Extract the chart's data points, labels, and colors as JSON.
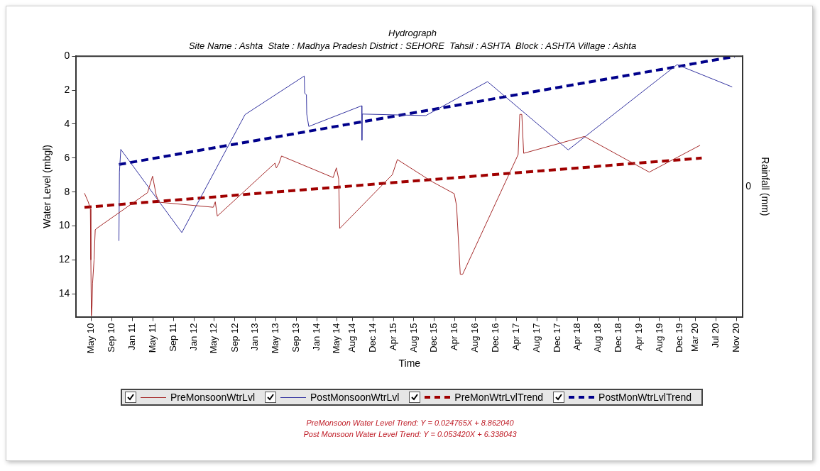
{
  "chart_data": {
    "type": "line",
    "title": "Hydrograph",
    "subtitle": "Site Name : Ashta  State : Madhya Pradesh District : SEHORE  Tahsil : ASHTA  Block : ASHTA Village : Ashta",
    "xlabel": "Time",
    "ylabel": "Water Level (mbgl)",
    "y2label": "Rainfall (mm)",
    "xlim": [
      "2010-01-31",
      "2020-12-08"
    ],
    "xticks": [
      {
        "value": "2010-05",
        "label": "May 10"
      },
      {
        "value": "2010-09",
        "label": "Sep 10"
      },
      {
        "value": "2011-01",
        "label": "Jan 11"
      },
      {
        "value": "2011-05",
        "label": "May 11"
      },
      {
        "value": "2011-09",
        "label": "Sep 11"
      },
      {
        "value": "2012-01",
        "label": "Jan 12"
      },
      {
        "value": "2012-05",
        "label": "May 12"
      },
      {
        "value": "2012-09",
        "label": "Sep 12"
      },
      {
        "value": "2013-01",
        "label": "Jan 13"
      },
      {
        "value": "2013-05",
        "label": "May 13"
      },
      {
        "value": "2013-09",
        "label": "Sep 13"
      },
      {
        "value": "2014-01",
        "label": "Jan 14"
      },
      {
        "value": "2014-05",
        "label": "May 14"
      },
      {
        "value": "2014-08",
        "label": "Aug 14"
      },
      {
        "value": "2014-12",
        "label": "Dec 14"
      },
      {
        "value": "2015-04",
        "label": "Apr 15"
      },
      {
        "value": "2015-08",
        "label": "Aug 15"
      },
      {
        "value": "2015-12",
        "label": "Dec 15"
      },
      {
        "value": "2016-04",
        "label": "Apr 16"
      },
      {
        "value": "2016-08",
        "label": "Aug 16"
      },
      {
        "value": "2016-12",
        "label": "Dec 16"
      },
      {
        "value": "2017-04",
        "label": "Apr 17"
      },
      {
        "value": "2017-08",
        "label": "Aug 17"
      },
      {
        "value": "2017-12",
        "label": "Dec 17"
      },
      {
        "value": "2018-04",
        "label": "Apr 18"
      },
      {
        "value": "2018-08",
        "label": "Aug 18"
      },
      {
        "value": "2018-12",
        "label": "Dec 18"
      },
      {
        "value": "2019-04",
        "label": "Apr 19"
      },
      {
        "value": "2019-08",
        "label": "Aug 19"
      },
      {
        "value": "2019-12",
        "label": "Dec 19"
      },
      {
        "value": "2020-03",
        "label": "Mar 20"
      },
      {
        "value": "2020-07",
        "label": "Jul 20"
      },
      {
        "value": "2020-11",
        "label": "Nov 20"
      }
    ],
    "ylim": [
      15.35,
      0
    ],
    "yticks": [
      0,
      2,
      4,
      6,
      8,
      10,
      12,
      14
    ],
    "grid": false,
    "legend": "bottom",
    "marker": "none",
    "series": [
      {
        "name": "PreMonsoonWtrLvl",
        "color": "#a52a2a",
        "line_style": "solid",
        "x": [
          "2010-03-21",
          "2010-04-13",
          "2010-04-25",
          "2010-04-28",
          "2010-05-01",
          "2010-05-05",
          "2010-05-08",
          "2010-05-17",
          "2010-05-24",
          "2010-06-01",
          "2011-03-31",
          "2011-04-30",
          "2011-05-22",
          "2011-06-07",
          "2012-04-25",
          "2012-05-07",
          "2012-05-19",
          "2013-04-27",
          "2013-05-05",
          "2013-05-20",
          "2013-06-05",
          "2014-04-08",
          "2014-04-27",
          "2014-05-11",
          "2014-05-17",
          "2015-03-26",
          "2015-04-25",
          "2015-11-17",
          "2016-03-28",
          "2016-04-11",
          "2016-05-03",
          "2016-05-17",
          "2017-04-12",
          "2017-04-22",
          "2017-05-04",
          "2017-05-15",
          "2018-05-11",
          "2019-06-01",
          "2020-03-29"
        ],
        "values": [
          8.07,
          8.6,
          9.0,
          12.0,
          15.3,
          14.7,
          13.4,
          12.0,
          10.23,
          10.15,
          8.04,
          7.07,
          8.2,
          8.6,
          8.9,
          8.58,
          9.42,
          6.3,
          6.58,
          6.33,
          5.88,
          7.15,
          6.58,
          7.23,
          10.15,
          6.98,
          6.09,
          7.39,
          8.1,
          8.81,
          12.85,
          12.85,
          5.8,
          3.43,
          3.43,
          5.72,
          4.73,
          6.83,
          5.25
        ]
      },
      {
        "name": "PostMonsoonWtrLvl",
        "color": "#3333a0",
        "line_style": "solid",
        "x": [
          "2010-10-12",
          "2010-10-15",
          "2010-10-23",
          "2011-10-21",
          "2012-10-31",
          "2013-10-18",
          "2013-10-21",
          "2013-10-31",
          "2013-11-02",
          "2013-11-14",
          "2014-09-25",
          "2014-09-26",
          "2014-09-28",
          "2015-10-11",
          "2016-10-12",
          "2018-02-04",
          "2019-11-13",
          "2020-10-06"
        ],
        "values": [
          10.88,
          6.82,
          5.49,
          10.39,
          3.44,
          1.17,
          2.19,
          2.27,
          3.41,
          4.14,
          2.92,
          4.95,
          3.41,
          3.5,
          1.5,
          5.52,
          0.5,
          1.81
        ]
      },
      {
        "name": "PreMonWtrLvlTrend",
        "color": "#a00000",
        "line_style": "dashed",
        "x": [
          "2010-03-21",
          "2020-04-08"
        ],
        "values": [
          8.9,
          6.0
        ]
      },
      {
        "name": "PostMonWtrLvlTrend",
        "color": "#00008b",
        "line_style": "dashed",
        "x": [
          "2010-10-12",
          "2020-10-21"
        ],
        "values": [
          6.38,
          0.02
        ]
      }
    ],
    "annotations": [
      "0",
      "PreMonsoon Water Level Trend: Y = 0.024765X + 8.862040",
      "Post Monsoon Water Level Trend: Y = 0.053420X + 6.338043"
    ]
  }
}
